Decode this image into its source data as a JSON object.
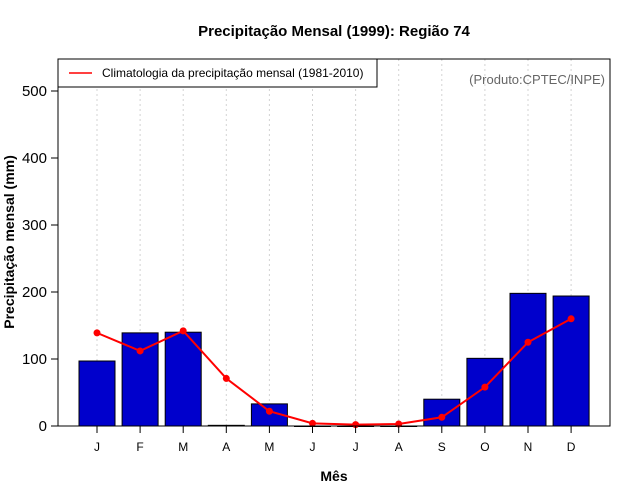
{
  "chart_data": {
    "type": "bar",
    "title": "Precipitação Mensal (1999): Região 74",
    "xlabel": "Mês",
    "ylabel": "Precipitação mensal (mm)",
    "categories": [
      "J",
      "F",
      "M",
      "A",
      "M",
      "J",
      "J",
      "A",
      "S",
      "O",
      "N",
      "D"
    ],
    "ylim": [
      0,
      550
    ],
    "yticks": [
      0,
      100,
      200,
      300,
      400,
      500
    ],
    "grid": "vertical dotted",
    "series": [
      {
        "name": "Precipitação mensal (1999)",
        "type": "bar",
        "color": "#0000CC",
        "values": [
          97,
          139,
          140,
          1,
          33,
          0,
          0,
          0,
          40,
          101,
          198,
          194
        ]
      },
      {
        "name": "Climatologia da precipitação mensal (1981-2010)",
        "type": "line",
        "color": "#FF0000",
        "values": [
          139,
          112,
          142,
          71,
          22,
          4,
          2,
          3,
          13,
          58,
          125,
          160
        ]
      }
    ],
    "legend": {
      "position": "top-left",
      "entries": [
        "Climatologia da precipitação mensal (1981-2010)"
      ]
    },
    "annotation": "(Produto:CPTEC/INPE)"
  }
}
